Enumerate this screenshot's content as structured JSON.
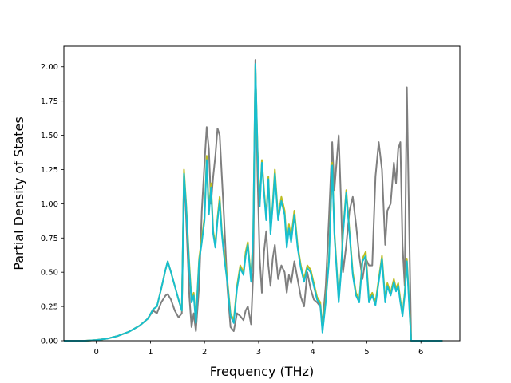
{
  "chart_data": {
    "type": "line",
    "title": "",
    "xlabel": "Frequency (THz)",
    "ylabel": "Partial Density of States",
    "xlim": [
      -0.6,
      6.72
    ],
    "ylim": [
      0.0,
      2.15
    ],
    "xticks": [
      0,
      1,
      2,
      3,
      4,
      5,
      6
    ],
    "yticks": [
      0.0,
      0.25,
      0.5,
      0.75,
      1.0,
      1.25,
      1.5,
      1.75,
      2.0
    ],
    "xtick_labels": [
      "0",
      "1",
      "2",
      "3",
      "4",
      "5",
      "6"
    ],
    "ytick_labels": [
      "0.00",
      "0.25",
      "0.50",
      "0.75",
      "1.00",
      "1.25",
      "1.50",
      "1.75",
      "2.00"
    ],
    "grid": false,
    "legend": "none",
    "series": [
      {
        "color": "#7f7f7f",
        "points": [
          [
            -0.6,
            0.0
          ],
          [
            -0.2,
            0.0
          ],
          [
            0.0,
            0.005
          ],
          [
            0.2,
            0.015
          ],
          [
            0.4,
            0.035
          ],
          [
            0.6,
            0.065
          ],
          [
            0.8,
            0.11
          ],
          [
            0.95,
            0.16
          ],
          [
            1.05,
            0.22
          ],
          [
            1.12,
            0.2
          ],
          [
            1.2,
            0.28
          ],
          [
            1.28,
            0.33
          ],
          [
            1.32,
            0.34
          ],
          [
            1.38,
            0.3
          ],
          [
            1.45,
            0.22
          ],
          [
            1.52,
            0.17
          ],
          [
            1.58,
            0.2
          ],
          [
            1.62,
            1.2
          ],
          [
            1.66,
            0.9
          ],
          [
            1.72,
            0.32
          ],
          [
            1.76,
            0.1
          ],
          [
            1.8,
            0.2
          ],
          [
            1.84,
            0.07
          ],
          [
            1.9,
            0.4
          ],
          [
            1.95,
            0.95
          ],
          [
            2.0,
            1.3
          ],
          [
            2.04,
            1.56
          ],
          [
            2.08,
            1.4
          ],
          [
            2.12,
            1.0
          ],
          [
            2.16,
            1.2
          ],
          [
            2.2,
            1.35
          ],
          [
            2.24,
            1.55
          ],
          [
            2.28,
            1.5
          ],
          [
            2.32,
            1.2
          ],
          [
            2.36,
            0.9
          ],
          [
            2.42,
            0.4
          ],
          [
            2.48,
            0.1
          ],
          [
            2.54,
            0.07
          ],
          [
            2.6,
            0.2
          ],
          [
            2.66,
            0.18
          ],
          [
            2.72,
            0.15
          ],
          [
            2.76,
            0.22
          ],
          [
            2.8,
            0.25
          ],
          [
            2.86,
            0.12
          ],
          [
            2.9,
            0.5
          ],
          [
            2.94,
            2.05
          ],
          [
            2.98,
            1.2
          ],
          [
            3.02,
            0.6
          ],
          [
            3.06,
            0.35
          ],
          [
            3.1,
            0.65
          ],
          [
            3.14,
            0.8
          ],
          [
            3.18,
            0.55
          ],
          [
            3.22,
            0.4
          ],
          [
            3.26,
            0.6
          ],
          [
            3.3,
            0.7
          ],
          [
            3.36,
            0.45
          ],
          [
            3.42,
            0.55
          ],
          [
            3.48,
            0.5
          ],
          [
            3.52,
            0.35
          ],
          [
            3.56,
            0.48
          ],
          [
            3.6,
            0.42
          ],
          [
            3.66,
            0.58
          ],
          [
            3.72,
            0.45
          ],
          [
            3.78,
            0.32
          ],
          [
            3.84,
            0.25
          ],
          [
            3.9,
            0.5
          ],
          [
            3.96,
            0.38
          ],
          [
            4.02,
            0.3
          ],
          [
            4.08,
            0.28
          ],
          [
            4.14,
            0.25
          ],
          [
            4.18,
            0.12
          ],
          [
            4.24,
            0.4
          ],
          [
            4.3,
            0.9
          ],
          [
            4.36,
            1.45
          ],
          [
            4.4,
            1.1
          ],
          [
            4.44,
            1.3
          ],
          [
            4.48,
            1.5
          ],
          [
            4.52,
            1.05
          ],
          [
            4.56,
            0.5
          ],
          [
            4.62,
            0.7
          ],
          [
            4.68,
            0.95
          ],
          [
            4.74,
            1.05
          ],
          [
            4.8,
            0.85
          ],
          [
            4.86,
            0.62
          ],
          [
            4.92,
            0.45
          ],
          [
            4.98,
            0.6
          ],
          [
            5.04,
            0.55
          ],
          [
            5.1,
            0.55
          ],
          [
            5.16,
            1.2
          ],
          [
            5.22,
            1.45
          ],
          [
            5.28,
            1.25
          ],
          [
            5.34,
            0.7
          ],
          [
            5.38,
            0.95
          ],
          [
            5.44,
            1.0
          ],
          [
            5.5,
            1.3
          ],
          [
            5.54,
            1.15
          ],
          [
            5.58,
            1.4
          ],
          [
            5.62,
            1.45
          ],
          [
            5.66,
            0.7
          ],
          [
            5.7,
            0.4
          ],
          [
            5.74,
            1.85
          ],
          [
            5.78,
            0.9
          ],
          [
            5.82,
            0.0
          ],
          [
            6.4,
            0.0
          ]
        ]
      },
      {
        "color": "#bcbd22",
        "points": [
          [
            -0.6,
            0.0
          ],
          [
            -0.2,
            0.0
          ],
          [
            0.0,
            0.005
          ],
          [
            0.2,
            0.015
          ],
          [
            0.4,
            0.035
          ],
          [
            0.6,
            0.065
          ],
          [
            0.8,
            0.11
          ],
          [
            0.95,
            0.16
          ],
          [
            1.05,
            0.23
          ],
          [
            1.12,
            0.25
          ],
          [
            1.2,
            0.38
          ],
          [
            1.28,
            0.52
          ],
          [
            1.32,
            0.58
          ],
          [
            1.38,
            0.5
          ],
          [
            1.45,
            0.4
          ],
          [
            1.52,
            0.3
          ],
          [
            1.58,
            0.22
          ],
          [
            1.62,
            1.25
          ],
          [
            1.66,
            1.0
          ],
          [
            1.72,
            0.55
          ],
          [
            1.76,
            0.3
          ],
          [
            1.8,
            0.35
          ],
          [
            1.84,
            0.15
          ],
          [
            1.9,
            0.6
          ],
          [
            1.95,
            0.75
          ],
          [
            2.0,
            0.9
          ],
          [
            2.04,
            1.35
          ],
          [
            2.08,
            0.95
          ],
          [
            2.12,
            1.15
          ],
          [
            2.16,
            0.8
          ],
          [
            2.2,
            0.7
          ],
          [
            2.24,
            0.9
          ],
          [
            2.28,
            1.05
          ],
          [
            2.32,
            0.8
          ],
          [
            2.36,
            0.65
          ],
          [
            2.42,
            0.45
          ],
          [
            2.48,
            0.2
          ],
          [
            2.54,
            0.15
          ],
          [
            2.6,
            0.4
          ],
          [
            2.66,
            0.55
          ],
          [
            2.72,
            0.5
          ],
          [
            2.76,
            0.65
          ],
          [
            2.8,
            0.72
          ],
          [
            2.86,
            0.45
          ],
          [
            2.9,
            0.8
          ],
          [
            2.94,
            2.0
          ],
          [
            2.98,
            1.4
          ],
          [
            3.02,
            1.0
          ],
          [
            3.06,
            1.32
          ],
          [
            3.1,
            1.1
          ],
          [
            3.14,
            0.9
          ],
          [
            3.18,
            1.2
          ],
          [
            3.22,
            0.8
          ],
          [
            3.26,
            1.0
          ],
          [
            3.3,
            1.25
          ],
          [
            3.36,
            0.9
          ],
          [
            3.42,
            1.05
          ],
          [
            3.48,
            0.95
          ],
          [
            3.52,
            0.7
          ],
          [
            3.56,
            0.85
          ],
          [
            3.6,
            0.75
          ],
          [
            3.66,
            0.95
          ],
          [
            3.72,
            0.7
          ],
          [
            3.78,
            0.55
          ],
          [
            3.84,
            0.45
          ],
          [
            3.9,
            0.55
          ],
          [
            3.96,
            0.52
          ],
          [
            4.02,
            0.42
          ],
          [
            4.08,
            0.32
          ],
          [
            4.14,
            0.28
          ],
          [
            4.18,
            0.08
          ],
          [
            4.24,
            0.3
          ],
          [
            4.3,
            0.6
          ],
          [
            4.36,
            1.3
          ],
          [
            4.4,
            0.8
          ],
          [
            4.44,
            0.55
          ],
          [
            4.48,
            0.3
          ],
          [
            4.52,
            0.5
          ],
          [
            4.56,
            0.8
          ],
          [
            4.62,
            1.1
          ],
          [
            4.68,
            0.8
          ],
          [
            4.74,
            0.5
          ],
          [
            4.8,
            0.35
          ],
          [
            4.86,
            0.3
          ],
          [
            4.92,
            0.6
          ],
          [
            4.98,
            0.65
          ],
          [
            5.04,
            0.3
          ],
          [
            5.1,
            0.35
          ],
          [
            5.16,
            0.28
          ],
          [
            5.22,
            0.45
          ],
          [
            5.28,
            0.62
          ],
          [
            5.34,
            0.3
          ],
          [
            5.38,
            0.42
          ],
          [
            5.44,
            0.35
          ],
          [
            5.5,
            0.45
          ],
          [
            5.54,
            0.38
          ],
          [
            5.58,
            0.42
          ],
          [
            5.62,
            0.3
          ],
          [
            5.66,
            0.2
          ],
          [
            5.7,
            0.35
          ],
          [
            5.74,
            0.6
          ],
          [
            5.78,
            0.3
          ],
          [
            5.82,
            0.0
          ],
          [
            6.4,
            0.0
          ]
        ]
      },
      {
        "color": "#17becf",
        "points": [
          [
            -0.6,
            0.0
          ],
          [
            -0.2,
            0.0
          ],
          [
            0.0,
            0.005
          ],
          [
            0.2,
            0.015
          ],
          [
            0.4,
            0.035
          ],
          [
            0.6,
            0.065
          ],
          [
            0.8,
            0.11
          ],
          [
            0.95,
            0.16
          ],
          [
            1.05,
            0.23
          ],
          [
            1.12,
            0.25
          ],
          [
            1.2,
            0.38
          ],
          [
            1.28,
            0.52
          ],
          [
            1.32,
            0.58
          ],
          [
            1.38,
            0.5
          ],
          [
            1.45,
            0.4
          ],
          [
            1.52,
            0.3
          ],
          [
            1.58,
            0.22
          ],
          [
            1.62,
            1.22
          ],
          [
            1.66,
            0.98
          ],
          [
            1.72,
            0.52
          ],
          [
            1.76,
            0.28
          ],
          [
            1.8,
            0.33
          ],
          [
            1.84,
            0.13
          ],
          [
            1.9,
            0.58
          ],
          [
            1.95,
            0.72
          ],
          [
            2.0,
            0.88
          ],
          [
            2.04,
            1.32
          ],
          [
            2.08,
            0.92
          ],
          [
            2.12,
            1.12
          ],
          [
            2.16,
            0.78
          ],
          [
            2.2,
            0.68
          ],
          [
            2.24,
            0.88
          ],
          [
            2.28,
            1.02
          ],
          [
            2.32,
            0.78
          ],
          [
            2.36,
            0.62
          ],
          [
            2.42,
            0.43
          ],
          [
            2.48,
            0.18
          ],
          [
            2.54,
            0.13
          ],
          [
            2.6,
            0.38
          ],
          [
            2.66,
            0.53
          ],
          [
            2.72,
            0.48
          ],
          [
            2.76,
            0.62
          ],
          [
            2.8,
            0.7
          ],
          [
            2.86,
            0.43
          ],
          [
            2.9,
            0.78
          ],
          [
            2.94,
            2.02
          ],
          [
            2.98,
            1.38
          ],
          [
            3.02,
            0.98
          ],
          [
            3.06,
            1.3
          ],
          [
            3.1,
            1.08
          ],
          [
            3.14,
            0.88
          ],
          [
            3.18,
            1.18
          ],
          [
            3.22,
            0.78
          ],
          [
            3.26,
            0.98
          ],
          [
            3.3,
            1.22
          ],
          [
            3.36,
            0.88
          ],
          [
            3.42,
            1.02
          ],
          [
            3.48,
            0.92
          ],
          [
            3.52,
            0.68
          ],
          [
            3.56,
            0.82
          ],
          [
            3.6,
            0.72
          ],
          [
            3.66,
            0.92
          ],
          [
            3.72,
            0.68
          ],
          [
            3.78,
            0.53
          ],
          [
            3.84,
            0.43
          ],
          [
            3.9,
            0.53
          ],
          [
            3.96,
            0.5
          ],
          [
            4.02,
            0.4
          ],
          [
            4.08,
            0.3
          ],
          [
            4.14,
            0.26
          ],
          [
            4.18,
            0.06
          ],
          [
            4.24,
            0.28
          ],
          [
            4.3,
            0.58
          ],
          [
            4.36,
            1.28
          ],
          [
            4.4,
            0.78
          ],
          [
            4.44,
            0.53
          ],
          [
            4.48,
            0.28
          ],
          [
            4.52,
            0.48
          ],
          [
            4.56,
            0.78
          ],
          [
            4.62,
            1.08
          ],
          [
            4.68,
            0.78
          ],
          [
            4.74,
            0.48
          ],
          [
            4.8,
            0.33
          ],
          [
            4.86,
            0.28
          ],
          [
            4.92,
            0.58
          ],
          [
            4.98,
            0.62
          ],
          [
            5.04,
            0.28
          ],
          [
            5.1,
            0.33
          ],
          [
            5.16,
            0.26
          ],
          [
            5.22,
            0.43
          ],
          [
            5.28,
            0.6
          ],
          [
            5.34,
            0.28
          ],
          [
            5.38,
            0.4
          ],
          [
            5.44,
            0.33
          ],
          [
            5.5,
            0.43
          ],
          [
            5.54,
            0.36
          ],
          [
            5.58,
            0.4
          ],
          [
            5.62,
            0.28
          ],
          [
            5.66,
            0.18
          ],
          [
            5.7,
            0.33
          ],
          [
            5.74,
            0.58
          ],
          [
            5.78,
            0.28
          ],
          [
            5.82,
            0.0
          ],
          [
            6.4,
            0.0
          ]
        ]
      }
    ]
  }
}
